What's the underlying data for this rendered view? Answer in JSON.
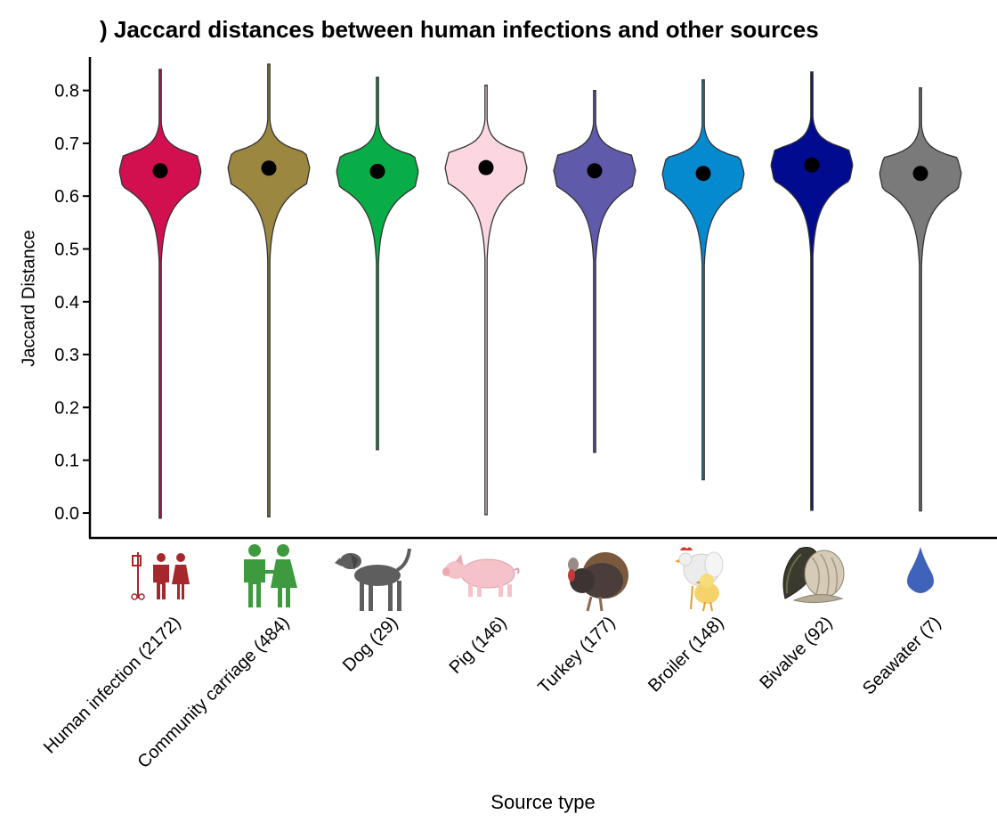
{
  "chart_data": {
    "type": "violin",
    "title": ") Jaccard distances between human infections and other sources",
    "xlabel": "Source type",
    "ylabel": "Jaccard Distance",
    "ylim": [
      0.0,
      0.85
    ],
    "yticks": [
      "0.0",
      "0.1",
      "0.2",
      "0.3",
      "0.4",
      "0.5",
      "0.6",
      "0.7",
      "0.8"
    ],
    "grid": false,
    "categories": [
      "Human infection (2172)",
      "Community carriage (484)",
      "Dog (29)",
      "Pig (146)",
      "Turkey (177)",
      "Broiler (148)",
      "Bivalve (92)",
      "Seawater (7)"
    ],
    "series": [
      {
        "category": "Human infection (2172)",
        "color": "#d3104f",
        "min": -0.01,
        "max": 0.84,
        "median": 0.648,
        "icon": "human-infection-icon"
      },
      {
        "category": "Community carriage (484)",
        "color": "#9b873f",
        "min": -0.007,
        "max": 0.85,
        "median": 0.653,
        "icon": "people-icon"
      },
      {
        "category": "Dog (29)",
        "color": "#09ad48",
        "min": 0.12,
        "max": 0.825,
        "median": 0.647,
        "icon": "dog-icon"
      },
      {
        "category": "Pig (146)",
        "color": "#fcd6e1",
        "min": -0.003,
        "max": 0.81,
        "median": 0.654,
        "icon": "pig-icon"
      },
      {
        "category": "Turkey (177)",
        "color": "#5f5aa9",
        "min": 0.115,
        "max": 0.8,
        "median": 0.648,
        "icon": "turkey-icon"
      },
      {
        "category": "Broiler (148)",
        "color": "#058ad0",
        "min": 0.063,
        "max": 0.82,
        "median": 0.643,
        "icon": "chicken-icon"
      },
      {
        "category": "Bivalve (92)",
        "color": "#000b8f",
        "min": 0.005,
        "max": 0.835,
        "median": 0.659,
        "icon": "mussel-icon"
      },
      {
        "category": "Seawater (7)",
        "color": "#7a7a7a",
        "min": 0.004,
        "max": 0.805,
        "median": 0.643,
        "icon": "water-drop-icon"
      }
    ]
  }
}
